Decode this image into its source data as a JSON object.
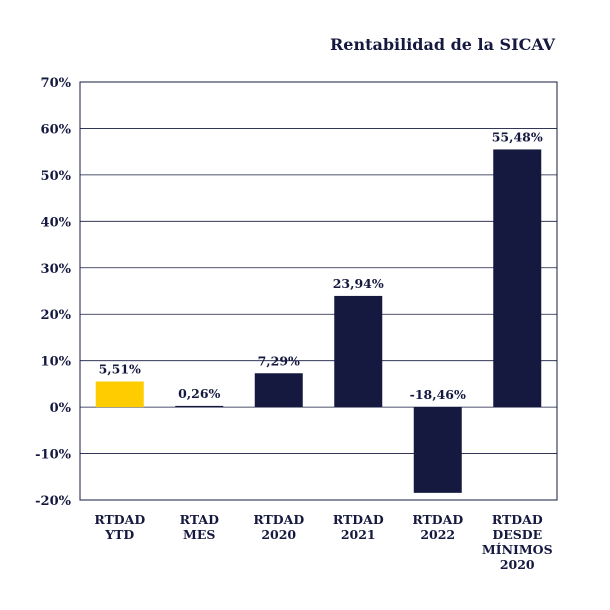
{
  "chart_data": {
    "type": "bar",
    "title": "Rentabilidad de la SICAV",
    "xlabel": "",
    "ylabel": "",
    "ylim": [
      -20,
      70
    ],
    "yticks": [
      70,
      60,
      50,
      40,
      30,
      20,
      10,
      0,
      -10,
      -20
    ],
    "ytick_labels": [
      "70%",
      "60%",
      "50%",
      "40%",
      "30%",
      "20%",
      "10%",
      "0%",
      "-10%",
      "-20%"
    ],
    "grid": true,
    "categories": [
      [
        "RTDAD",
        "YTD"
      ],
      [
        "RTAD",
        "MES"
      ],
      [
        "RTDAD",
        "2020"
      ],
      [
        "RTDAD",
        "2021"
      ],
      [
        "RTDAD",
        "2022"
      ],
      [
        "RTDAD",
        "DESDE",
        "MÍNIMOS",
        "2020"
      ]
    ],
    "values": [
      5.51,
      0.26,
      7.29,
      23.94,
      -18.46,
      55.48
    ],
    "data_labels": [
      "5,51%",
      "0,26%",
      "7,29%",
      "23,94%",
      "-18,46%",
      "55,48%"
    ],
    "colors": {
      "highlight": "#ffcc00",
      "bar": "#15193f",
      "text": "#15193f",
      "grid": "#15193f"
    },
    "bar_colors": [
      "#ffcc00",
      "#15193f",
      "#15193f",
      "#15193f",
      "#15193f",
      "#15193f"
    ]
  }
}
